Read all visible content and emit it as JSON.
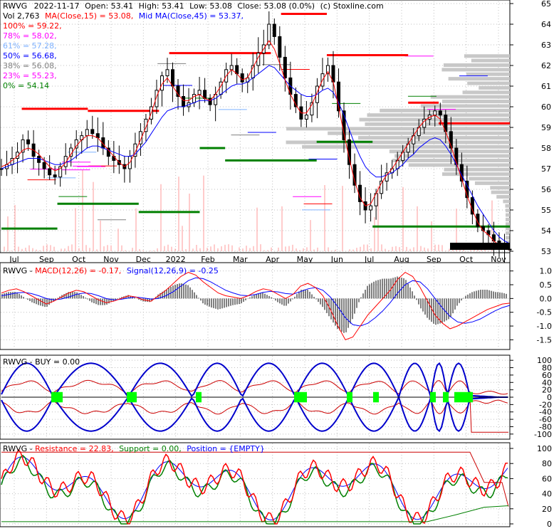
{
  "header": {
    "ticker": "RWVG",
    "date": "2022-11-17",
    "open": "Open: 53.41",
    "high": "High: 53.41",
    "low": "Low: 53.08",
    "close": "Close: 53.08 (0.0%)",
    "source": "(c) Stoxline.com",
    "vol": "Vol 2,763",
    "ma15": "MA(Close,15) = 53.08,",
    "ma45": "Mid MA(Close,45) = 53.37,"
  },
  "fib_levels": [
    {
      "label": "100% = 59.22,",
      "color": "#ff0000"
    },
    {
      "label": "78% = 58.02,",
      "color": "#ff00ff"
    },
    {
      "label": "61% = 57.28,",
      "color": "#7fb2ff"
    },
    {
      "label": "50% = 56.68,",
      "color": "#0000ff"
    },
    {
      "label": "38% = 56.08,",
      "color": "#808080"
    },
    {
      "label": "23% = 55.23,",
      "color": "#ff00ff"
    },
    {
      "label": "0% = 54.14",
      "color": "#008000"
    }
  ],
  "colors": {
    "price": "#000000",
    "ma_short": "#ff0000",
    "ma_mid": "#0000ff",
    "resistance_line": "#ff0000",
    "support_line": "#008000",
    "volume": "#ff9999",
    "grid": "#c0c0c0",
    "profile": "#c8c8c8",
    "buy_signal": "#00ff00"
  },
  "chart_data": [
    {
      "type": "line",
      "title": "",
      "x_tick_labels": [
        "Jul",
        "Sep",
        "Oct",
        "Nov",
        "Dec",
        "2022",
        "Feb",
        "Mar",
        "Apr",
        "May",
        "Jun",
        "Jul",
        "Aug",
        "Sep",
        "Oct",
        "Nov"
      ],
      "y_tick_labels": [
        "53",
        "54",
        "55",
        "56",
        "57",
        "58",
        "59",
        "60",
        "61",
        "62",
        "63",
        "64",
        "65"
      ],
      "ylim": [
        53,
        65
      ],
      "grid": true,
      "close_series": [
        57.0,
        57.2,
        57.5,
        57.8,
        58.4,
        58.2,
        57.6,
        57.3,
        57.0,
        56.7,
        56.6,
        57.1,
        57.6,
        58.0,
        58.4,
        58.6,
        58.9,
        58.7,
        58.5,
        58.0,
        57.6,
        57.4,
        57.2,
        57.0,
        57.6,
        58.2,
        58.8,
        59.4,
        60.0,
        60.8,
        61.5,
        61.8,
        61.0,
        60.5,
        60.0,
        60.2,
        60.6,
        60.8,
        60.4,
        60.1,
        60.6,
        61.2,
        61.8,
        62.0,
        61.6,
        61.2,
        61.4,
        62.0,
        62.6,
        63.0,
        64.0,
        63.4,
        62.4,
        61.4,
        60.6,
        60.0,
        59.4,
        59.6,
        60.2,
        61.0,
        61.6,
        62.0,
        61.2,
        59.8,
        58.4,
        57.2,
        56.2,
        55.4,
        55.0,
        55.2,
        55.8,
        56.4,
        56.8,
        57.0,
        57.4,
        57.8,
        58.2,
        58.6,
        59.0,
        59.4,
        59.6,
        59.8,
        59.6,
        58.8,
        58.0,
        57.2,
        56.4,
        55.6,
        54.8,
        54.2,
        54.0,
        53.8,
        53.5,
        53.3,
        53.1,
        53.08
      ],
      "ma15_series": [
        57.1,
        57.2,
        57.4,
        57.6,
        57.9,
        58.0,
        57.9,
        57.7,
        57.4,
        57.1,
        56.9,
        57.0,
        57.3,
        57.7,
        58.1,
        58.4,
        58.6,
        58.6,
        58.5,
        58.2,
        57.9,
        57.6,
        57.3,
        57.1,
        57.3,
        57.8,
        58.4,
        59.0,
        59.7,
        60.5,
        61.1,
        61.4,
        61.0,
        60.6,
        60.3,
        60.3,
        60.5,
        60.6,
        60.4,
        60.3,
        60.6,
        61.0,
        61.5,
        61.8,
        61.6,
        61.3,
        61.4,
        61.9,
        62.4,
        62.8,
        63.2,
        62.8,
        62.1,
        61.3,
        60.6,
        60.1,
        59.7,
        59.7,
        60.1,
        60.7,
        61.3,
        61.7,
        61.2,
        60.0,
        58.7,
        57.5,
        56.4,
        55.6,
        55.2,
        55.3,
        55.8,
        56.3,
        56.7,
        57.0,
        57.4,
        57.8,
        58.2,
        58.6,
        59.0,
        59.3,
        59.5,
        59.6,
        59.4,
        58.8,
        58.1,
        57.3,
        56.5,
        55.7,
        55.0,
        54.4,
        54.0,
        53.8,
        53.5,
        53.3,
        53.1,
        53.08
      ],
      "ma45_series": [
        57.0,
        57.1,
        57.2,
        57.3,
        57.4,
        57.5,
        57.5,
        57.5,
        57.4,
        57.3,
        57.2,
        57.2,
        57.3,
        57.4,
        57.6,
        57.8,
        58.0,
        58.1,
        58.1,
        58.0,
        57.9,
        57.8,
        57.7,
        57.6,
        57.6,
        57.7,
        58.0,
        58.3,
        58.7,
        59.1,
        59.5,
        59.8,
        59.9,
        60.0,
        60.0,
        60.1,
        60.2,
        60.3,
        60.3,
        60.3,
        60.4,
        60.6,
        60.8,
        61.0,
        61.1,
        61.1,
        61.2,
        61.4,
        61.6,
        61.8,
        62.0,
        61.9,
        61.6,
        61.3,
        61.0,
        60.8,
        60.6,
        60.5,
        60.5,
        60.6,
        60.8,
        60.9,
        60.7,
        60.2,
        59.6,
        58.9,
        58.2,
        57.6,
        57.1,
        56.8,
        56.6,
        56.6,
        56.7,
        56.8,
        57.0,
        57.2,
        57.5,
        57.7,
        58.0,
        58.2,
        58.4,
        58.5,
        58.4,
        58.1,
        57.7,
        57.2,
        56.7,
        56.2,
        55.7,
        55.2,
        54.8,
        54.4,
        54.0,
        53.7,
        53.5,
        53.37
      ],
      "resistance_steps": [
        {
          "from": 0.04,
          "to": 0.17,
          "y": 59.9
        },
        {
          "from": 0.17,
          "to": 0.31,
          "y": 59.8
        },
        {
          "from": 0.33,
          "to": 0.53,
          "y": 62.6
        },
        {
          "from": 0.55,
          "to": 0.64,
          "y": 64.5
        },
        {
          "from": 0.64,
          "to": 0.8,
          "y": 62.5
        },
        {
          "from": 0.8,
          "to": 0.86,
          "y": 60.2
        },
        {
          "from": 0.86,
          "to": 1.0,
          "y": 59.2
        }
      ],
      "support_steps": [
        {
          "from": 0.0,
          "to": 0.11,
          "y": 54.1
        },
        {
          "from": 0.11,
          "to": 0.27,
          "y": 55.3
        },
        {
          "from": 0.27,
          "to": 0.39,
          "y": 54.9
        },
        {
          "from": 0.39,
          "to": 0.44,
          "y": 58.0
        },
        {
          "from": 0.44,
          "to": 0.62,
          "y": 57.4
        },
        {
          "from": 0.62,
          "to": 0.73,
          "y": 58.3
        },
        {
          "from": 0.73,
          "to": 1.0,
          "y": 54.2
        }
      ]
    },
    {
      "type": "line",
      "title": "",
      "label_prefix": "RWVG - ",
      "macd_label": "MACD(12,26) = -0.17,",
      "signal_label": "Signal(12,26,9) = -0.25",
      "y_tick_labels": [
        "1.0",
        "0.5",
        "0.0",
        "-0.5",
        "-1.0",
        "-1.5"
      ],
      "ylim": [
        -1.8,
        1.25
      ],
      "macd_series": [
        0.2,
        0.3,
        0.35,
        0.25,
        0.1,
        -0.05,
        -0.2,
        -0.1,
        0.05,
        0.2,
        0.3,
        0.25,
        0.1,
        -0.05,
        -0.15,
        -0.1,
        0.0,
        0.1,
        0.05,
        -0.05,
        -0.1,
        0.1,
        0.3,
        0.55,
        0.8,
        0.95,
        0.85,
        0.6,
        0.4,
        0.2,
        0.1,
        0.05,
        0.0,
        0.1,
        0.25,
        0.35,
        0.3,
        0.15,
        0.0,
        0.15,
        0.45,
        0.55,
        0.4,
        0.1,
        -0.4,
        -1.0,
        -1.5,
        -1.4,
        -1.0,
        -0.6,
        -0.3,
        0.0,
        0.3,
        0.7,
        0.95,
        0.8,
        0.4,
        -0.1,
        -0.6,
        -0.9,
        -1.1,
        -1.0,
        -0.85,
        -0.7,
        -0.55,
        -0.4,
        -0.3,
        -0.2,
        -0.17
      ],
      "signal_series": [
        0.1,
        0.15,
        0.2,
        0.22,
        0.18,
        0.1,
        0.0,
        -0.05,
        -0.02,
        0.05,
        0.15,
        0.2,
        0.18,
        0.1,
        0.0,
        -0.05,
        -0.03,
        0.02,
        0.05,
        0.02,
        -0.02,
        0.0,
        0.1,
        0.25,
        0.45,
        0.65,
        0.75,
        0.72,
        0.6,
        0.45,
        0.3,
        0.2,
        0.12,
        0.1,
        0.15,
        0.22,
        0.26,
        0.24,
        0.18,
        0.16,
        0.25,
        0.35,
        0.4,
        0.3,
        0.05,
        -0.3,
        -0.7,
        -0.95,
        -1.0,
        -0.9,
        -0.7,
        -0.45,
        -0.15,
        0.2,
        0.5,
        0.65,
        0.6,
        0.35,
        0.0,
        -0.35,
        -0.65,
        -0.85,
        -0.9,
        -0.85,
        -0.75,
        -0.6,
        -0.45,
        -0.33,
        -0.25
      ]
    },
    {
      "type": "line",
      "title": "",
      "label": "RWVG - BUY = 0.00",
      "y_tick_labels": [
        "100",
        "80",
        "60",
        "40",
        "20",
        "0",
        "-20",
        "-40",
        "-60",
        "-80",
        "-100"
      ],
      "ylim": [
        -110,
        110
      ]
    },
    {
      "type": "line",
      "title": "",
      "label_prefix": "RWVG - ",
      "resistance_label": "Resistance = 22.83,",
      "support_label": "Support = 0.00,",
      "position_label": "Position = {EMPTY}",
      "y_tick_labels": [
        "100",
        "80",
        "60",
        "40",
        "20",
        "0"
      ],
      "ylim": [
        0,
        100
      ]
    }
  ]
}
